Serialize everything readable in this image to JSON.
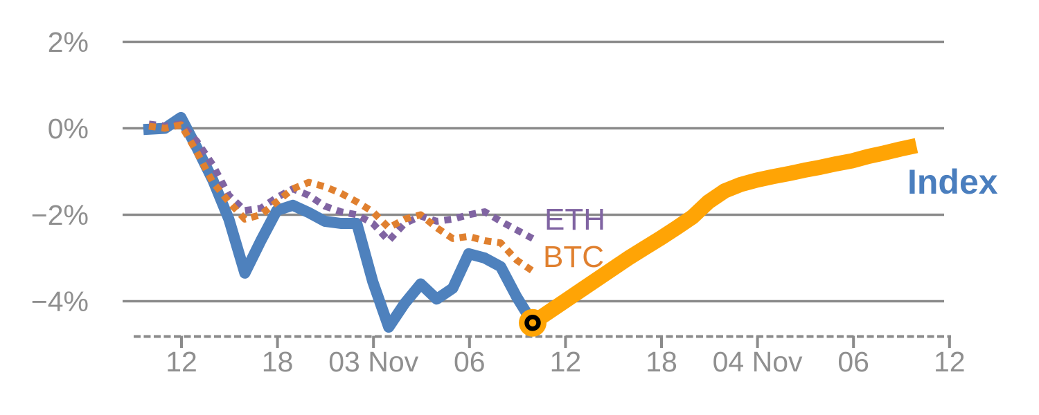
{
  "chart_data": {
    "type": "line",
    "title": "",
    "description": "Percent change of crypto Index vs ETH and BTC, hourly, with projected Index path",
    "x_axis": {
      "tick_labels": [
        "12",
        "18",
        "03 Nov",
        "06",
        "12",
        "18",
        "04 Nov",
        "06",
        "12"
      ],
      "tick_hours": [
        2,
        8,
        14,
        20,
        26,
        32,
        38,
        44,
        50
      ],
      "unit": "hour",
      "grid": false
    },
    "y_axis": {
      "tick_labels": [
        "2%",
        "0%",
        "−2%",
        "−4%"
      ],
      "tick_values": [
        2,
        0,
        -2,
        -4
      ],
      "unit": "percent",
      "range": [
        -4.8,
        2.4
      ],
      "grid": true
    },
    "series": [
      {
        "name": "Index",
        "segment": "history",
        "color": "#4E81BD",
        "line_style": "solid",
        "line_width": 16,
        "start_hour": 0,
        "values": [
          -0.02,
          0.0,
          0.25,
          -0.45,
          -1.2,
          -2.1,
          -3.35,
          -2.6,
          -1.9,
          -1.78,
          -1.95,
          -2.15,
          -2.2,
          -2.2,
          -3.55,
          -4.6,
          -4.05,
          -3.6,
          -3.95,
          -3.7,
          -2.9,
          -3.0,
          -3.2,
          -3.9,
          -4.5
        ]
      },
      {
        "name": "ETH",
        "segment": "history",
        "color": "#8064A2",
        "line_style": "dotted",
        "line_width": 10,
        "start_hour": 0,
        "values": [
          0.1,
          0.05,
          0.1,
          -0.3,
          -0.85,
          -1.55,
          -1.9,
          -1.85,
          -1.6,
          -1.4,
          -1.55,
          -1.8,
          -1.93,
          -2.0,
          -2.2,
          -2.6,
          -2.2,
          -2.03,
          -2.15,
          -2.1,
          -2.0,
          -1.93,
          -2.15,
          -2.35,
          -2.55
        ]
      },
      {
        "name": "BTC",
        "segment": "history",
        "color": "#E0802F",
        "line_style": "dotted",
        "line_width": 10,
        "start_hour": 0,
        "values": [
          0.05,
          0.0,
          0.08,
          -0.55,
          -1.25,
          -1.7,
          -2.1,
          -2.0,
          -1.7,
          -1.4,
          -1.25,
          -1.35,
          -1.5,
          -1.7,
          -1.93,
          -2.3,
          -2.1,
          -2.0,
          -2.3,
          -2.55,
          -2.5,
          -2.6,
          -2.65,
          -3.05,
          -3.3
        ]
      },
      {
        "name": "Index",
        "segment": "projection",
        "color": "#FFA405",
        "line_style": "solid",
        "line_width": 22,
        "start_hour": 24,
        "values": [
          -4.5,
          -4.25,
          -4.0,
          -3.75,
          -3.5,
          -3.25,
          -3.0,
          -2.77,
          -2.54,
          -2.3,
          -2.05,
          -1.7,
          -1.45,
          -1.3,
          -1.2,
          -1.12,
          -1.05,
          -0.97,
          -0.9,
          -0.82,
          -0.75,
          -0.65,
          -0.57,
          -0.48,
          -0.4
        ]
      }
    ],
    "endpoint_marker": {
      "hour": 24,
      "value": -4.5,
      "fill": "#FFA405",
      "ring_color": "#000000"
    },
    "annotations": [
      {
        "text": "ETH",
        "color": "#8064A2"
      },
      {
        "text": "BTC",
        "color": "#E0802F"
      },
      {
        "text": "Index",
        "color": "#4A7EBE"
      }
    ],
    "grid_color": "#8B8B8B",
    "axis_text_color": "#8F8F8F",
    "legend_position": "inline-annotations"
  }
}
